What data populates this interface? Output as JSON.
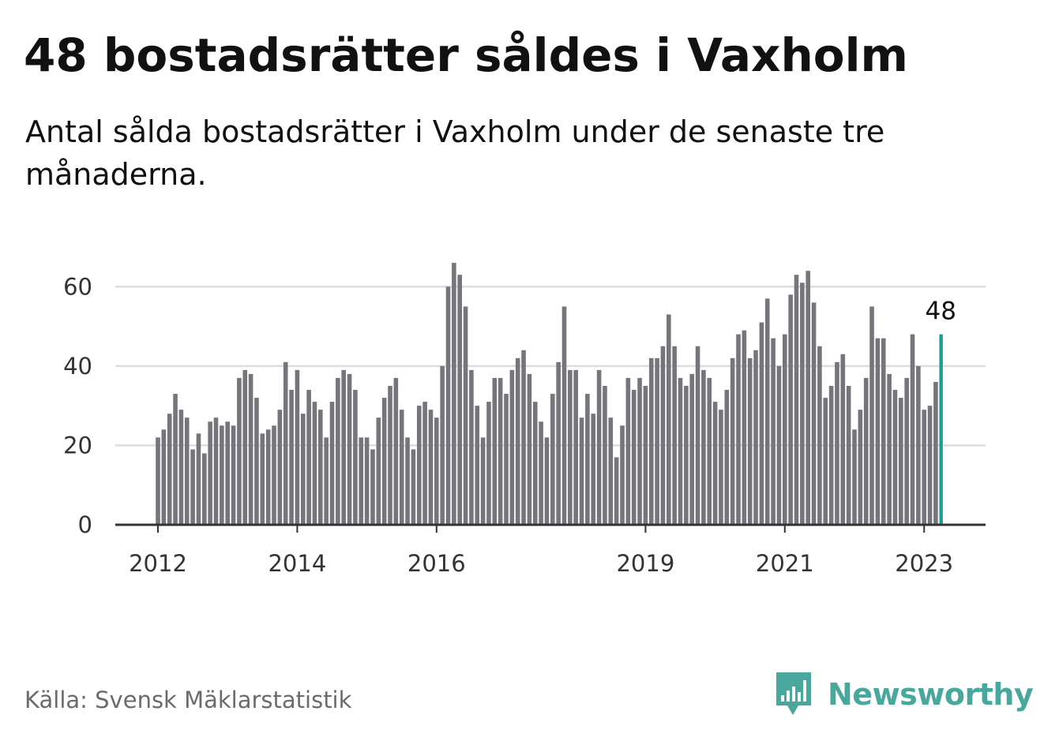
{
  "title": "48 bostadsrätter såldes i Vaxholm",
  "subtitle": "Antal sålda bostadsrätter i Vaxholm under de senaste tre månaderna.",
  "source": "Källa: Svensk Mäklarstatistik",
  "brand": {
    "name": "Newsworthy",
    "icon": "bar-chart-speech-bubble-icon",
    "color": "#48a89e"
  },
  "colors": {
    "bar": "#76757c",
    "highlight": "#1a9e92",
    "grid": "#dddddd",
    "axis": "#333333"
  },
  "chart_data": {
    "type": "bar",
    "title": "48 bostadsrätter såldes i Vaxholm",
    "subtitle": "Antal sålda bostadsrätter i Vaxholm under de senaste tre månaderna.",
    "xlabel": "",
    "ylabel": "",
    "ylim": [
      0,
      70
    ],
    "yticks": [
      0,
      20,
      40,
      60
    ],
    "xticks": [
      {
        "label": "2012",
        "index": 0
      },
      {
        "label": "2014",
        "index": 24
      },
      {
        "label": "2016",
        "index": 48
      },
      {
        "label": "2019",
        "index": 84
      },
      {
        "label": "2021",
        "index": 108
      },
      {
        "label": "2023",
        "index": 132
      }
    ],
    "grid": true,
    "annotation": {
      "label": "48",
      "index": 135
    },
    "highlight_index": 135,
    "series": [
      {
        "name": "Antal sålda bostadsrätter",
        "values": [
          22,
          24,
          28,
          33,
          29,
          27,
          19,
          23,
          18,
          26,
          27,
          25,
          26,
          25,
          37,
          39,
          38,
          32,
          23,
          24,
          25,
          29,
          41,
          34,
          39,
          28,
          34,
          31,
          29,
          22,
          31,
          37,
          39,
          38,
          34,
          22,
          22,
          19,
          27,
          32,
          35,
          37,
          29,
          22,
          19,
          30,
          31,
          29,
          27,
          40,
          60,
          66,
          63,
          55,
          39,
          30,
          22,
          31,
          37,
          37,
          33,
          39,
          42,
          44,
          38,
          31,
          26,
          22,
          33,
          41,
          55,
          39,
          39,
          27,
          33,
          28,
          39,
          35,
          27,
          17,
          25,
          37,
          34,
          37,
          35,
          42,
          42,
          45,
          53,
          45,
          37,
          35,
          38,
          45,
          39,
          37,
          31,
          29,
          34,
          42,
          48,
          49,
          42,
          44,
          51,
          57,
          47,
          40,
          48,
          58,
          63,
          61,
          64,
          56,
          45,
          32,
          35,
          41,
          43,
          35,
          24,
          29,
          37,
          55,
          47,
          47,
          38,
          34,
          32,
          37,
          48,
          40,
          29,
          30,
          36,
          48
        ]
      }
    ]
  }
}
